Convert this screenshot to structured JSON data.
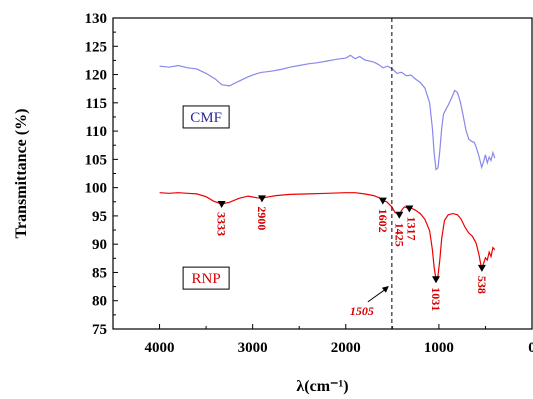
{
  "chart_data": {
    "type": "line",
    "xlabel": "λ(cm⁻¹)",
    "ylabel": "Transmittance (%)",
    "xlim": [
      4500,
      0
    ],
    "ylim": [
      75,
      130
    ],
    "x_ticks": [
      4000,
      3000,
      2000,
      1000,
      0
    ],
    "y_ticks": [
      75,
      80,
      85,
      90,
      95,
      100,
      105,
      110,
      115,
      120,
      125,
      130
    ],
    "grid": false,
    "series": [
      {
        "name": "CMF",
        "color": "#8888ee",
        "points": [
          [
            4000,
            121.5
          ],
          [
            3900,
            121.3
          ],
          [
            3800,
            121.6
          ],
          [
            3700,
            121.2
          ],
          [
            3600,
            121.0
          ],
          [
            3500,
            120.2
          ],
          [
            3400,
            119.2
          ],
          [
            3333,
            118.2
          ],
          [
            3250,
            118.0
          ],
          [
            3150,
            118.8
          ],
          [
            3050,
            119.6
          ],
          [
            2950,
            120.2
          ],
          [
            2900,
            120.4
          ],
          [
            2800,
            120.6
          ],
          [
            2700,
            120.9
          ],
          [
            2600,
            121.3
          ],
          [
            2500,
            121.6
          ],
          [
            2400,
            121.9
          ],
          [
            2300,
            122.1
          ],
          [
            2200,
            122.4
          ],
          [
            2100,
            122.7
          ],
          [
            2000,
            122.9
          ],
          [
            1950,
            123.4
          ],
          [
            1900,
            122.8
          ],
          [
            1850,
            123.2
          ],
          [
            1800,
            122.6
          ],
          [
            1700,
            122.2
          ],
          [
            1650,
            121.8
          ],
          [
            1600,
            121.2
          ],
          [
            1550,
            121.5
          ],
          [
            1500,
            121.0
          ],
          [
            1450,
            120.2
          ],
          [
            1400,
            120.4
          ],
          [
            1350,
            119.8
          ],
          [
            1300,
            119.9
          ],
          [
            1250,
            119.2
          ],
          [
            1200,
            118.6
          ],
          [
            1150,
            117.6
          ],
          [
            1100,
            115.0
          ],
          [
            1070,
            110.5
          ],
          [
            1050,
            106.0
          ],
          [
            1031,
            103.2
          ],
          [
            1010,
            103.5
          ],
          [
            990,
            106.5
          ],
          [
            970,
            110.5
          ],
          [
            950,
            113.0
          ],
          [
            900,
            114.6
          ],
          [
            860,
            116.0
          ],
          [
            830,
            117.2
          ],
          [
            800,
            116.8
          ],
          [
            770,
            115.2
          ],
          [
            740,
            112.8
          ],
          [
            710,
            110.2
          ],
          [
            680,
            108.6
          ],
          [
            650,
            108.2
          ],
          [
            620,
            108.0
          ],
          [
            600,
            107.2
          ],
          [
            570,
            105.6
          ],
          [
            540,
            103.6
          ],
          [
            520,
            104.6
          ],
          [
            500,
            105.8
          ],
          [
            480,
            104.4
          ],
          [
            460,
            105.4
          ],
          [
            440,
            104.8
          ],
          [
            420,
            106.2
          ],
          [
            400,
            105.2
          ]
        ]
      },
      {
        "name": "RNP",
        "color": "#ee0000",
        "points": [
          [
            4000,
            99.1
          ],
          [
            3900,
            99.0
          ],
          [
            3800,
            99.1
          ],
          [
            3700,
            99.0
          ],
          [
            3600,
            98.9
          ],
          [
            3500,
            98.4
          ],
          [
            3420,
            97.6
          ],
          [
            3333,
            97.1
          ],
          [
            3250,
            97.4
          ],
          [
            3150,
            98.1
          ],
          [
            3050,
            98.5
          ],
          [
            2950,
            98.2
          ],
          [
            2900,
            98.1
          ],
          [
            2850,
            98.3
          ],
          [
            2750,
            98.6
          ],
          [
            2600,
            98.8
          ],
          [
            2400,
            98.9
          ],
          [
            2200,
            99.0
          ],
          [
            2000,
            99.1
          ],
          [
            1900,
            99.1
          ],
          [
            1800,
            98.9
          ],
          [
            1700,
            98.6
          ],
          [
            1640,
            98.2
          ],
          [
            1602,
            97.7
          ],
          [
            1560,
            97.5
          ],
          [
            1505,
            96.6
          ],
          [
            1470,
            95.6
          ],
          [
            1425,
            95.2
          ],
          [
            1400,
            96.0
          ],
          [
            1370,
            96.6
          ],
          [
            1317,
            96.3
          ],
          [
            1300,
            96.4
          ],
          [
            1250,
            96.0
          ],
          [
            1200,
            95.4
          ],
          [
            1150,
            94.4
          ],
          [
            1100,
            92.4
          ],
          [
            1070,
            89.0
          ],
          [
            1050,
            85.8
          ],
          [
            1031,
            83.8
          ],
          [
            1010,
            84.4
          ],
          [
            990,
            87.2
          ],
          [
            970,
            91.0
          ],
          [
            940,
            94.2
          ],
          [
            900,
            95.2
          ],
          [
            850,
            95.4
          ],
          [
            800,
            95.2
          ],
          [
            760,
            94.4
          ],
          [
            720,
            93.0
          ],
          [
            680,
            92.0
          ],
          [
            640,
            91.4
          ],
          [
            600,
            90.2
          ],
          [
            570,
            88.2
          ],
          [
            550,
            86.4
          ],
          [
            538,
            85.8
          ],
          [
            520,
            86.6
          ],
          [
            500,
            87.6
          ],
          [
            480,
            87.2
          ],
          [
            460,
            88.6
          ],
          [
            440,
            87.8
          ],
          [
            420,
            89.4
          ],
          [
            400,
            89.0
          ]
        ]
      }
    ],
    "series_labels": [
      {
        "text": "CMF",
        "x": 3500,
        "y": 112.5,
        "color": "#2a2a9a"
      },
      {
        "text": "RNP",
        "x": 3500,
        "y": 84.0,
        "color": "#d40000"
      }
    ],
    "peak_annotations": [
      {
        "label": "3333",
        "x": 3333,
        "y": 97.1
      },
      {
        "label": "2900",
        "x": 2900,
        "y": 98.1
      },
      {
        "label": "1602",
        "x": 1602,
        "y": 97.7
      },
      {
        "label": "1425",
        "x": 1425,
        "y": 95.2
      },
      {
        "label": "1317",
        "x": 1317,
        "y": 96.3
      },
      {
        "label": "1031",
        "x": 1031,
        "y": 83.8
      },
      {
        "label": "538",
        "x": 538,
        "y": 85.8
      }
    ],
    "reference_line": {
      "x": 1505,
      "label": "1505",
      "style": "dashed"
    }
  }
}
